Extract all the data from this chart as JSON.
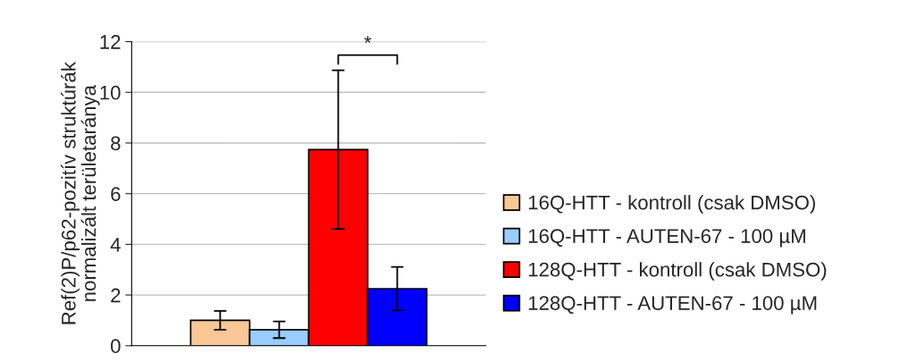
{
  "chart_data": {
    "type": "bar",
    "ylabel": "Ref(2)P/p62-pozitív struktúrák\nnormalizált területaránya",
    "categories": [
      null
    ],
    "series": [
      {
        "name": "16Q-HTT - kontroll (csak DMSO)",
        "color": "#fac896",
        "values": [
          1.0
        ],
        "errors": [
          0.37
        ]
      },
      {
        "name": "16Q-HTT - AUTEN-67 - 100 µM",
        "color": "#99ccff",
        "values": [
          0.63
        ],
        "errors": [
          0.33
        ]
      },
      {
        "name": "128Q-HTT - kontroll (csak DMSO)",
        "color": "#ff0000",
        "values": [
          7.74
        ],
        "errors": [
          3.13
        ]
      },
      {
        "name": "128Q-HTT - AUTEN-67 - 100 µM",
        "color": "#0000ff",
        "values": [
          2.25
        ],
        "errors": [
          0.86
        ]
      }
    ],
    "ylim": [
      0,
      12
    ],
    "yticks": [
      0,
      2,
      4,
      6,
      8,
      10,
      12
    ],
    "grid": "y",
    "legend": "right",
    "annotations": [
      "*"
    ]
  }
}
